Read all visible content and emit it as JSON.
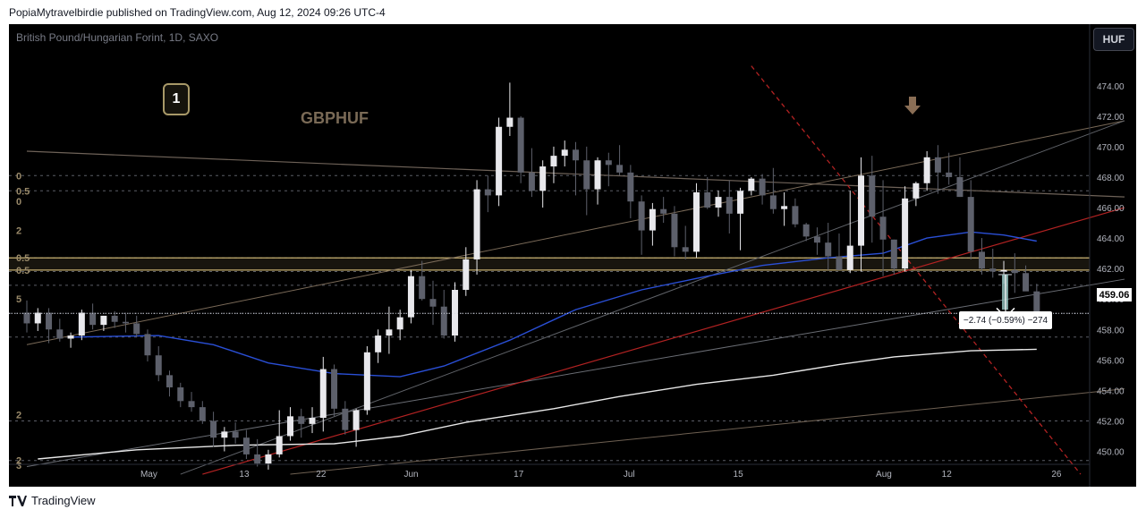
{
  "header": {
    "publish_text": "PopiaMytravelbirdie published on TradingView.com, Aug 12, 2024 09:26 UTC-4"
  },
  "chart_header": {
    "symbol_text": "British Pound/Hungarian Forint, 1D, SAXO",
    "currency_badge": "HUF"
  },
  "annotations": {
    "number_badge": "1",
    "symbol_title": "GBPHUF",
    "measure_label": "−2.74 (−0.59%) −274",
    "current_price": "459.06",
    "fib_labels": [
      "0",
      "0.5",
      "0",
      "2",
      "0.5",
      "0.5",
      "5",
      "2",
      "3",
      "2"
    ]
  },
  "footer": {
    "brand": "TradingView"
  },
  "colors": {
    "background": "#000000",
    "bull_candle": "#e8e8ec",
    "bear_candle": "#5d606b",
    "ma_short": "#2a4fd6",
    "ma_long": "#e8e8e8",
    "trend_red": "#b22222",
    "fib_band": "#c8b070",
    "arrow_brown": "#8a6e55",
    "measure_arrow": "#8fbcb8"
  },
  "chart_data": {
    "type": "candlestick",
    "title": "British Pound/Hungarian Forint, 1D, SAXO",
    "y_axis": {
      "range": [
        448.5,
        475.0
      ],
      "ticks": [
        474,
        472,
        470,
        468,
        466,
        464,
        462,
        460,
        458,
        456,
        454,
        452,
        450
      ]
    },
    "x_axis": {
      "labels": [
        {
          "label": "May",
          "index": 7
        },
        {
          "label": "13",
          "index": 16
        },
        {
          "label": "22",
          "index": 23
        },
        {
          "label": "Jun",
          "index": 31
        },
        {
          "label": "17",
          "index": 41
        },
        {
          "label": "Jul",
          "index": 51
        },
        {
          "label": "15",
          "index": 61
        },
        {
          "label": "Aug",
          "index": 74
        },
        {
          "label": "12",
          "index": 80
        },
        {
          "label": "26",
          "index": 90
        }
      ]
    },
    "candles": [
      [
        459.1,
        459.9,
        457.8,
        458.4
      ],
      [
        458.4,
        459.4,
        457.9,
        459.1
      ],
      [
        459.1,
        459.4,
        457.1,
        458.0
      ],
      [
        458.0,
        458.7,
        457.2,
        457.4
      ],
      [
        457.4,
        457.8,
        456.8,
        457.6
      ],
      [
        457.6,
        459.3,
        457.3,
        459.1
      ],
      [
        459.1,
        459.7,
        458.0,
        458.3
      ],
      [
        458.3,
        458.9,
        457.9,
        458.9
      ],
      [
        458.9,
        459.2,
        458.1,
        458.5
      ],
      [
        458.5,
        459.1,
        457.8,
        458.4
      ],
      [
        458.4,
        458.9,
        457.5,
        457.7
      ],
      [
        457.7,
        458.0,
        455.9,
        456.3
      ],
      [
        456.3,
        456.9,
        454.6,
        455.0
      ],
      [
        455.0,
        455.3,
        453.6,
        454.2
      ],
      [
        454.2,
        454.5,
        452.9,
        453.3
      ],
      [
        453.3,
        453.9,
        452.6,
        452.9
      ],
      [
        452.9,
        453.3,
        451.8,
        452.0
      ],
      [
        452.0,
        452.6,
        450.3,
        450.9
      ],
      [
        450.9,
        451.6,
        450.0,
        451.3
      ],
      [
        451.3,
        451.9,
        450.5,
        450.9
      ],
      [
        450.9,
        451.4,
        449.5,
        449.8
      ],
      [
        449.8,
        450.8,
        449.0,
        449.2
      ],
      [
        449.2,
        450.1,
        448.8,
        449.8
      ],
      [
        449.8,
        452.7,
        449.6,
        451.0
      ],
      [
        451.0,
        452.9,
        450.7,
        452.3
      ],
      [
        452.3,
        452.8,
        450.9,
        451.8
      ],
      [
        451.8,
        452.9,
        451.2,
        452.2
      ],
      [
        452.2,
        456.2,
        451.3,
        455.4
      ],
      [
        455.4,
        455.7,
        452.3,
        452.8
      ],
      [
        452.8,
        453.3,
        451.1,
        451.4
      ],
      [
        451.4,
        452.8,
        450.3,
        452.7
      ],
      [
        452.7,
        456.9,
        452.4,
        456.5
      ],
      [
        456.5,
        458.0,
        455.8,
        457.6
      ],
      [
        457.6,
        459.5,
        456.4,
        458.0
      ],
      [
        458.0,
        459.3,
        457.3,
        458.8
      ],
      [
        458.8,
        461.9,
        458.4,
        461.5
      ],
      [
        461.5,
        462.5,
        459.9,
        460.0
      ],
      [
        460.0,
        461.2,
        458.3,
        459.5
      ],
      [
        459.5,
        460.6,
        457.4,
        457.6
      ],
      [
        457.6,
        461.1,
        457.2,
        460.6
      ],
      [
        460.6,
        463.4,
        460.2,
        462.6
      ],
      [
        462.6,
        467.8,
        461.6,
        467.2
      ],
      [
        467.2,
        468.1,
        465.7,
        466.8
      ],
      [
        466.8,
        471.9,
        466.1,
        471.3
      ],
      [
        471.3,
        474.2,
        470.7,
        471.9
      ],
      [
        471.9,
        472.0,
        467.6,
        468.3
      ],
      [
        468.3,
        469.9,
        466.7,
        467.1
      ],
      [
        467.1,
        469.1,
        466.0,
        468.7
      ],
      [
        468.7,
        470.0,
        467.6,
        469.4
      ],
      [
        469.4,
        470.4,
        468.7,
        469.8
      ],
      [
        469.8,
        470.3,
        466.8,
        469.1
      ],
      [
        469.1,
        470.0,
        465.5,
        467.2
      ],
      [
        467.2,
        469.3,
        466.2,
        469.1
      ],
      [
        469.1,
        469.6,
        467.4,
        468.8
      ],
      [
        468.8,
        470.1,
        468.1,
        468.3
      ],
      [
        468.3,
        468.8,
        465.3,
        466.4
      ],
      [
        466.4,
        466.8,
        462.9,
        464.5
      ],
      [
        464.5,
        466.3,
        463.5,
        465.9
      ],
      [
        465.9,
        466.7,
        465.0,
        465.6
      ],
      [
        465.6,
        466.1,
        462.8,
        463.4
      ],
      [
        463.4,
        464.8,
        462.6,
        463.1
      ],
      [
        463.1,
        467.6,
        462.7,
        467.0
      ],
      [
        467.0,
        468.0,
        465.9,
        466.0
      ],
      [
        466.0,
        467.1,
        465.4,
        466.7
      ],
      [
        466.7,
        467.8,
        464.3,
        465.6
      ],
      [
        465.6,
        467.3,
        463.2,
        467.1
      ],
      [
        467.1,
        468.0,
        466.8,
        467.9
      ],
      [
        467.9,
        468.2,
        466.2,
        466.8
      ],
      [
        466.8,
        468.6,
        465.6,
        465.9
      ],
      [
        465.9,
        467.0,
        464.8,
        466.1
      ],
      [
        466.1,
        466.6,
        464.7,
        464.9
      ],
      [
        464.9,
        465.0,
        463.8,
        464.1
      ],
      [
        464.1,
        464.7,
        462.9,
        463.7
      ],
      [
        463.7,
        465.0,
        461.9,
        462.8
      ],
      [
        462.8,
        464.3,
        461.9,
        461.9
      ],
      [
        461.9,
        467.1,
        461.7,
        463.5
      ],
      [
        463.5,
        469.3,
        461.8,
        468.1
      ],
      [
        468.1,
        469.4,
        463.7,
        465.4
      ],
      [
        465.4,
        467.8,
        461.5,
        463.9
      ],
      [
        463.9,
        463.9,
        461.6,
        462.0
      ],
      [
        462.0,
        467.4,
        461.8,
        466.6
      ],
      [
        466.6,
        467.7,
        466.1,
        467.6
      ],
      [
        467.6,
        469.7,
        467.1,
        469.3
      ],
      [
        469.3,
        470.1,
        466.9,
        468.3
      ],
      [
        468.3,
        469.6,
        467.5,
        468.0
      ],
      [
        468.0,
        469.3,
        466.7,
        466.7
      ],
      [
        466.7,
        467.8,
        462.6,
        463.1
      ],
      [
        463.1,
        464.0,
        461.6,
        462.0
      ],
      [
        462.0,
        463.3,
        461.4,
        461.8
      ],
      [
        461.8,
        462.5,
        461.0,
        461.9
      ],
      [
        461.9,
        463.0,
        460.4,
        461.7
      ],
      [
        461.7,
        462.2,
        460.6,
        460.5
      ],
      [
        460.5,
        461.0,
        459.0,
        459.1
      ]
    ],
    "candle_index_offset": -4,
    "ma_blue": [
      [
        0,
        457.5
      ],
      [
        8,
        457.6
      ],
      [
        13,
        457.0
      ],
      [
        18,
        455.8
      ],
      [
        24,
        455.1
      ],
      [
        30,
        454.9
      ],
      [
        34,
        455.6
      ],
      [
        40,
        457.3
      ],
      [
        46,
        459.3
      ],
      [
        52,
        460.6
      ],
      [
        58,
        461.5
      ],
      [
        63,
        462.2
      ],
      [
        69,
        462.7
      ],
      [
        74,
        463.0
      ],
      [
        78,
        464.0
      ],
      [
        82,
        464.4
      ],
      [
        85,
        464.2
      ],
      [
        88,
        463.8
      ]
    ],
    "ma_white": [
      [
        -3,
        449.5
      ],
      [
        6,
        450.1
      ],
      [
        15,
        450.4
      ],
      [
        24,
        450.5
      ],
      [
        30,
        451.0
      ],
      [
        36,
        451.9
      ],
      [
        44,
        452.8
      ],
      [
        50,
        453.6
      ],
      [
        57,
        454.4
      ],
      [
        64,
        455.0
      ],
      [
        70,
        455.7
      ],
      [
        75,
        456.2
      ],
      [
        82,
        456.6
      ],
      [
        88,
        456.7
      ]
    ],
    "current_price": 459.06,
    "measure": {
      "change": -2.74,
      "percent": -0.59,
      "ticks": -274
    }
  }
}
